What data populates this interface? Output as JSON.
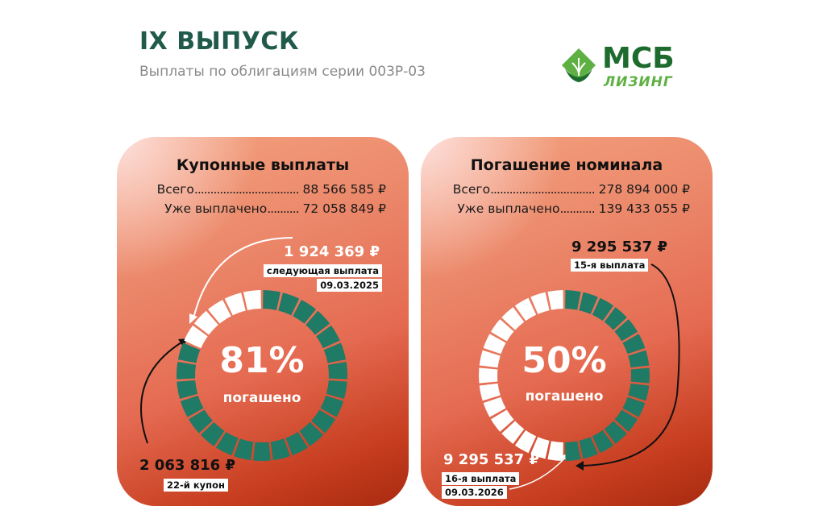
{
  "header": {
    "title": "IX ВЫПУСК",
    "subtitle": "Выплаты по облигациям серии 003Р-03"
  },
  "logo": {
    "line1": "МСБ",
    "line2": "ЛИЗИНГ",
    "colors": {
      "dark": "#1e6b2e",
      "light": "#5fb043"
    }
  },
  "colors": {
    "accent": "#1f7a66",
    "paid": "#1f7a66",
    "unpaid": "#ffffff",
    "card_top": "#f3a27f",
    "card_bottom": "#a82a10"
  },
  "coupon": {
    "title": "Купонные выплаты",
    "total_label": "Всего",
    "total_dots": ".................................",
    "total_value": "88 566 585 ₽",
    "paid_label": "Уже выплачено",
    "paid_dots": "..........",
    "paid_value": "72 058 849 ₽",
    "percent": "81%",
    "percent_label": "погашено",
    "next_amount": "1 924 369 ₽",
    "next_label": "следующая выплата",
    "next_date": "09.03.2025",
    "last_amount": "2 063 816 ₽",
    "last_label": "22-й купон",
    "progress": {
      "segments": 27,
      "filled": 22
    }
  },
  "nominal": {
    "title": "Погашение номинала",
    "total_label": "Всего",
    "total_dots": ".................................",
    "total_value": "278 894 000 ₽",
    "paid_label": "Уже выплачено",
    "paid_dots": "...........",
    "paid_value": "139 433 055 ₽",
    "percent": "50%",
    "percent_label": "погашено",
    "last_amount": "9 295 537 ₽",
    "last_label": "15-я выплата",
    "next_amount": "9 295 537 ₽",
    "next_label": "16-я выплата",
    "next_date": "09.03.2026",
    "progress": {
      "segments": 30,
      "filled": 15
    }
  }
}
